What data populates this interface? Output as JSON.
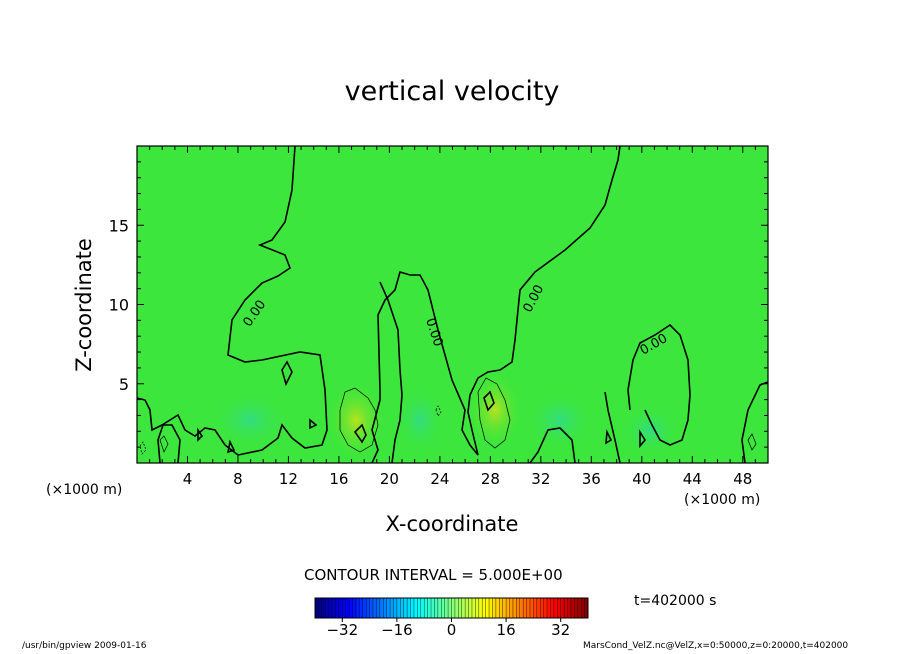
{
  "chart_data": {
    "type": "heatmap",
    "title": "vertical velocity",
    "xlabel": "X-coordinate",
    "ylabel": "Z-coordinate",
    "x_unit_label": "(×1000 m)",
    "x_ticks": [
      4,
      8,
      12,
      16,
      20,
      24,
      28,
      32,
      36,
      40,
      44,
      48
    ],
    "y_ticks": [
      5,
      10,
      15
    ],
    "xlim": [
      0,
      50
    ],
    "ylim": [
      0,
      20
    ],
    "contour_label": "0.00",
    "contour_interval_text": "CONTOUR INTERVAL = 5.000E+00",
    "time_text": "t=402000 s",
    "colorbar": {
      "ticks": [
        -32,
        -16,
        0,
        16,
        32
      ],
      "tick_labels": [
        "−32",
        "−16",
        "0",
        "16",
        "32"
      ],
      "range": [
        -40,
        40
      ]
    },
    "background_color": "#3ce63c"
  },
  "footer": {
    "left": "/usr/bin/gpview   2009-01-16",
    "right": "MarsCond_VelZ.nc@VelZ,x=0:50000,z=0:20000,t=402000"
  }
}
